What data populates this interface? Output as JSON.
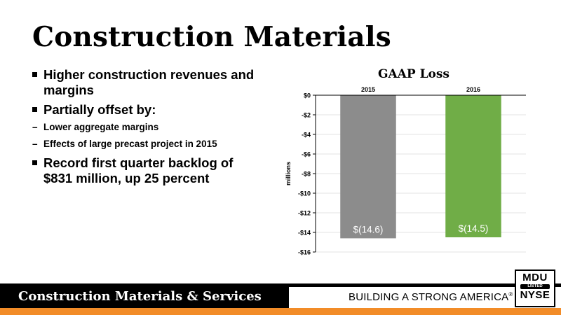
{
  "slide": {
    "title": "Construction Materials",
    "bullets": [
      {
        "text": "Higher construction revenues and margins",
        "sub": []
      },
      {
        "text": "Partially offset by:",
        "sub": [
          "Lower aggregate margins",
          "Effects of large precast project in 2015"
        ]
      },
      {
        "text": "Record first quarter backlog of $831 million, up 25 percent",
        "sub": []
      }
    ]
  },
  "footer": {
    "segment": "Construction Materials & Services",
    "tagline": "BUILDING A STRONG AMERICA",
    "tagline_mark": "®",
    "logo": {
      "line1": "MDU",
      "line2": "LISTED",
      "line3": "NYSE"
    }
  },
  "chart_data": {
    "type": "bar",
    "title": "GAAP Loss",
    "ylabel": "millions",
    "categories": [
      "2015",
      "2016"
    ],
    "values": [
      -14.6,
      -14.5
    ],
    "data_labels": [
      "$(14.6)",
      "$(14.5)"
    ],
    "colors": [
      "#8c8c8c",
      "#70ad47"
    ],
    "ylim": [
      -16,
      0
    ],
    "yticks": [
      0,
      -2,
      -4,
      -6,
      -8,
      -10,
      -12,
      -14,
      -16
    ],
    "ytick_labels": [
      "$0",
      "-$2",
      "-$4",
      "-$6",
      "-$8",
      "-$10",
      "-$12",
      "-$14",
      "-$16"
    ],
    "grid": true,
    "x_axis_position": "top"
  }
}
